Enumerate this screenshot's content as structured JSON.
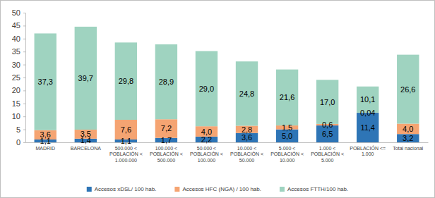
{
  "chart_data": {
    "type": "bar",
    "stacked": true,
    "data_labels": true,
    "legend": "bottom",
    "grid": false,
    "categories": [
      "MADRID",
      "BARCELONA",
      "500.000 < POBLACIÓN < 1.000.000",
      "100.000 < POBLACIÓN < 500.000",
      "50.000 < POBLACIÓN < 100.000",
      "10.000 < POBLACIÓN < 50.000",
      "5.000 < POBLACIÓN < 10.000",
      "1.000 < POBLACIÓN < 5.000",
      "POBLACIÓN <= 1.000",
      "Total nacional"
    ],
    "ylim": [
      0,
      50
    ],
    "yticks": [
      0,
      5,
      10,
      15,
      20,
      25,
      30,
      35,
      40,
      45,
      50
    ],
    "series": [
      {
        "name": "Accesos xDSL/ 100 hab.",
        "color": "#2e75b6",
        "values": [
          1.1,
          1.4,
          1.1,
          1.7,
          2.2,
          3.6,
          5.0,
          6.5,
          11.4,
          3.2
        ],
        "value_labels": [
          "1,1",
          "1,4",
          "1,1",
          "1,7",
          "2,2",
          "3,6",
          "5,0",
          "6,5",
          "11,4",
          "3,2"
        ]
      },
      {
        "name": "Accesos HFC (NGA) / 100 hab.",
        "color": "#f5a472",
        "values": [
          3.6,
          3.5,
          7.6,
          7.2,
          4.0,
          2.8,
          1.5,
          0.6,
          0.04,
          4.0
        ],
        "value_labels": [
          "3,6",
          "3,5",
          "7,6",
          "7,2",
          "4,0",
          "2,8",
          "1,5",
          "0,6",
          "0,04",
          "4,0"
        ]
      },
      {
        "name": "Accesos FTTH/100 hab.",
        "color": "#9fd3c0",
        "values": [
          37.3,
          39.7,
          29.8,
          28.9,
          29.0,
          24.8,
          21.6,
          17.0,
          10.1,
          26.6
        ],
        "value_labels": [
          "37,3",
          "39,7",
          "29,8",
          "28,9",
          "29,0",
          "24,8",
          "21,6",
          "17,0",
          "10,1",
          "26,6"
        ]
      }
    ]
  }
}
